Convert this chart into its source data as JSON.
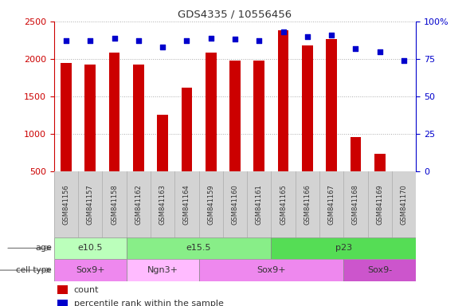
{
  "title": "GDS4335 / 10556456",
  "samples": [
    "GSM841156",
    "GSM841157",
    "GSM841158",
    "GSM841162",
    "GSM841163",
    "GSM841164",
    "GSM841159",
    "GSM841160",
    "GSM841161",
    "GSM841165",
    "GSM841166",
    "GSM841167",
    "GSM841168",
    "GSM841169",
    "GSM841170"
  ],
  "counts": [
    1950,
    1920,
    2080,
    1920,
    1260,
    1620,
    2080,
    1980,
    1980,
    2380,
    2180,
    2270,
    960,
    730,
    500
  ],
  "percentiles": [
    87,
    87,
    89,
    87,
    83,
    87,
    89,
    88,
    87,
    93,
    90,
    91,
    82,
    80,
    74
  ],
  "ylim_left": [
    500,
    2500
  ],
  "ylim_right": [
    0,
    100
  ],
  "yticks_left": [
    500,
    1000,
    1500,
    2000,
    2500
  ],
  "yticks_right": [
    0,
    25,
    50,
    75,
    100
  ],
  "bar_color": "#cc0000",
  "dot_color": "#0000cc",
  "grid_color": "#aaaaaa",
  "age_groups": [
    {
      "label": "e10.5",
      "start": 0,
      "end": 3,
      "color": "#bbffbb"
    },
    {
      "label": "e15.5",
      "start": 3,
      "end": 9,
      "color": "#88ee88"
    },
    {
      "label": "p23",
      "start": 9,
      "end": 15,
      "color": "#55dd55"
    }
  ],
  "cell_groups": [
    {
      "label": "Sox9+",
      "start": 0,
      "end": 3,
      "color": "#ee88ee"
    },
    {
      "label": "Ngn3+",
      "start": 3,
      "end": 6,
      "color": "#ffbbff"
    },
    {
      "label": "Sox9+",
      "start": 6,
      "end": 12,
      "color": "#ee88ee"
    },
    {
      "label": "Sox9-",
      "start": 12,
      "end": 15,
      "color": "#cc55cc"
    }
  ],
  "legend_count_color": "#cc0000",
  "legend_pct_color": "#0000cc",
  "left_axis_color": "#cc0000",
  "right_axis_color": "#0000cc",
  "bar_width": 0.45,
  "figure_bg": "#ffffff",
  "plot_bg": "#ffffff",
  "sample_bg": "#d3d3d3"
}
